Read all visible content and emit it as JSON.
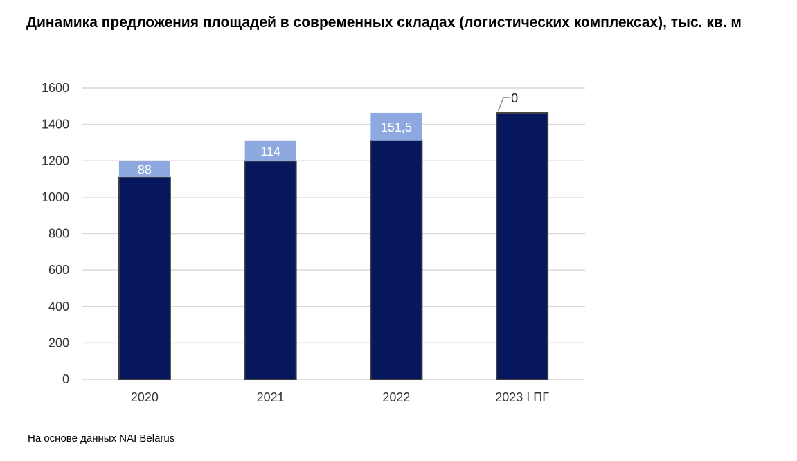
{
  "title": "Динамика предложения площадей в современных складах (логистических комплексах), тыс. кв. м",
  "source": "На основе данных NAI Belarus",
  "colors": {
    "base": "#06175E",
    "increment": "#8EA9E0",
    "grid": "#D9D9D9",
    "bar_border": "#404040",
    "increment_label": "#FFFFFF",
    "outside_label": "#222222"
  },
  "chart_data": {
    "type": "bar",
    "stacked": true,
    "categories": [
      "2020",
      "2021",
      "2022",
      "2023 I ПГ"
    ],
    "series": [
      {
        "values": [
          1110,
          1198,
          1312,
          1463
        ]
      },
      {
        "values": [
          88,
          114,
          151.5,
          0
        ]
      }
    ],
    "data_labels": [
      "88",
      "114",
      "151,5",
      "0"
    ],
    "y_ticks": [
      "0",
      "200",
      "400",
      "600",
      "800",
      "1000",
      "1200",
      "1400",
      "1600"
    ],
    "ylim": [
      0,
      1600
    ],
    "grid": true,
    "legend": "none"
  }
}
